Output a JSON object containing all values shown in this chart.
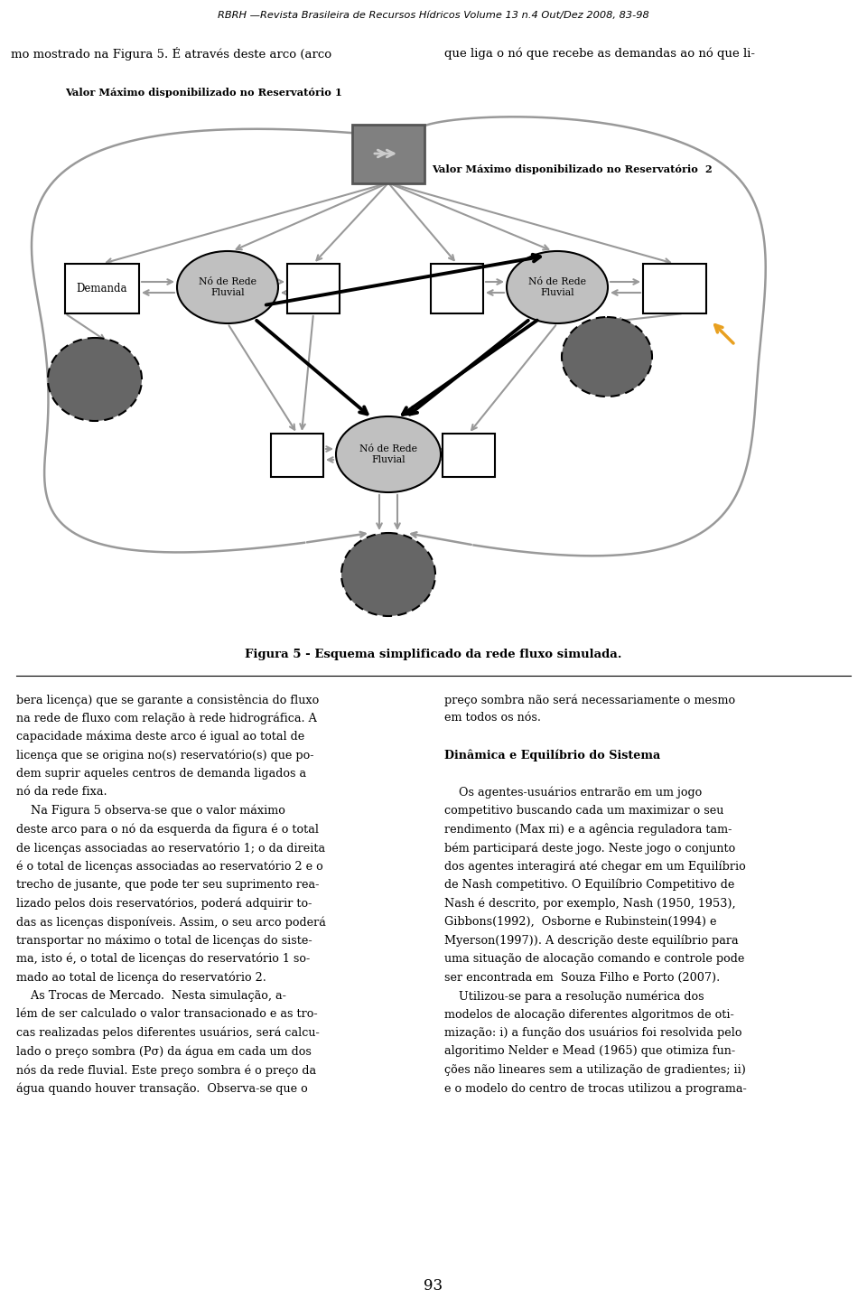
{
  "title_top_bold": "RBRH —Revista Brasileira de Recursos Hídricos",
  "title_top_normal": " Volume 13 n.4 Out/Dez 2008, 83-98",
  "text_line1_left": "mo mostrado na Figura 5. É através deste arco (arco",
  "text_line1_right": "que liga o nó que recebe as demandas ao nó que li-",
  "figure_caption": "Figura 5 - Esquema simplificado da rede fluxo simulada.",
  "label_reservoir1": "Valor Máximo disponibilizado no Reservatório 1",
  "label_reservoir2": "Valor Máximo disponibilizado no Reservatório  2",
  "node_label": "Nó de Rede\nFluvial",
  "demanda_label": "Demanda",
  "page_number": "93",
  "text_left_col": [
    "bera licença) que se garante a consistência do fluxo",
    "na rede de fluxo com relação à rede hidrográfica. A",
    "capacidade máxima deste arco é igual ao total de",
    "licença que se origina no(s) reservatório(s) que po-",
    "dem suprir aqueles centros de demanda ligados a",
    "nó da rede fixa.",
    "    Na Figura 5 observa-se que o valor máximo",
    "deste arco para o nó da esquerda da figura é o total",
    "de licenças associadas ao reservatório 1; o da direita",
    "é o total de licenças associadas ao reservatório 2 e o",
    "trecho de jusante, que pode ter seu suprimento rea-",
    "lizado pelos dois reservatórios, poderá adquirir to-",
    "das as licenças disponíveis. Assim, o seu arco poderá",
    "transportar no máximo o total de licenças do siste-",
    "ma, isto é, o total de licenças do reservatório 1 so-",
    "mado ao total de licença do reservatório 2.",
    "    As Trocas de Mercado.  Nesta simulação, a-",
    "lém de ser calculado o valor transacionado e as tro-",
    "cas realizadas pelos diferentes usuários, será calcu-",
    "lado o preço sombra (Pσ) da água em cada um dos",
    "nós da rede fluvial. Este preço sombra é o preço da",
    "água quando houver transação.  Observa-se que o"
  ],
  "text_right_col": [
    [
      "preço sombra não será necessariamente o mesmo",
      "normal"
    ],
    [
      "em todos os nós.",
      "normal"
    ],
    [
      "",
      "normal"
    ],
    [
      "Dinâmica e Equilíbrio do Sistema",
      "bold"
    ],
    [
      "",
      "normal"
    ],
    [
      "    Os agentes-usuários entrarão em um jogo",
      "normal"
    ],
    [
      "competitivo buscando ",
      "normal"
    ],
    [
      "rendimento (",
      "normal"
    ],
    [
      "bém participará deste jogo. Neste jogo o conjunto",
      "normal"
    ],
    [
      "dos agentes interagirá até chegar em um ",
      "normal"
    ],
    [
      "de Nash competitivo. O Equilíbrio Competitivo de",
      "normal"
    ],
    [
      "Nash é descrito, por exemplo, Nash (1950, 1953),",
      "normal"
    ],
    [
      "Gibbons(1992),  Osborne e Rubinstein(1994) e",
      "normal"
    ],
    [
      "Myerson(1997)). A descrição deste equilíbrio para",
      "normal"
    ],
    [
      "uma situação de alocação comando e controle pode",
      "normal"
    ],
    [
      "ser encontrada em  Souza Filho e Porto (2007).",
      "normal"
    ],
    [
      "    Utilizou-se para a resolução numérica dos",
      "normal"
    ],
    [
      "modelos de alocação diferentes algoritmos de oti-",
      "normal"
    ],
    [
      "mização: i) a função dos usuários foi resolvida pelo",
      "normal"
    ],
    [
      "algoritimo Nelder e Mead (1965) que otimiza fun-",
      "normal"
    ],
    [
      "ções não lineares sem a utilização de gradientes; ii)",
      "normal"
    ],
    [
      "e o modelo do centro de trocas utilizou a programa-",
      "normal"
    ]
  ],
  "bg_color": "#ffffff",
  "arrow_gray": "#999999",
  "arrow_lgray": "#bbbbbb",
  "node_fill_light": "#c0c0c0",
  "node_fill_dark": "#666666",
  "reservoir_fill": "#808080",
  "orange_color": "#e8a020"
}
